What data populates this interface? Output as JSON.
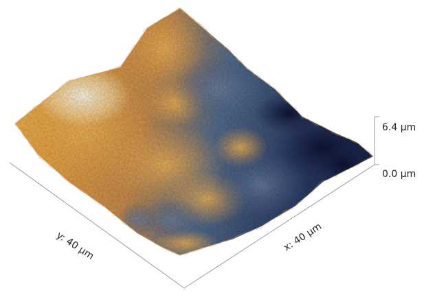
{
  "scale": {
    "z_max_label": "6.4 µm",
    "z_min_label": "0.0 µm"
  },
  "axes": {
    "y_label": "y: 40 µm",
    "x_label": "x: 40 µm"
  },
  "colors": {
    "high": "#fff2d6",
    "mid_high": "#e7a54a",
    "mid": "#b27b4b",
    "mid_low": "#425b84",
    "low": "#121b42"
  }
}
